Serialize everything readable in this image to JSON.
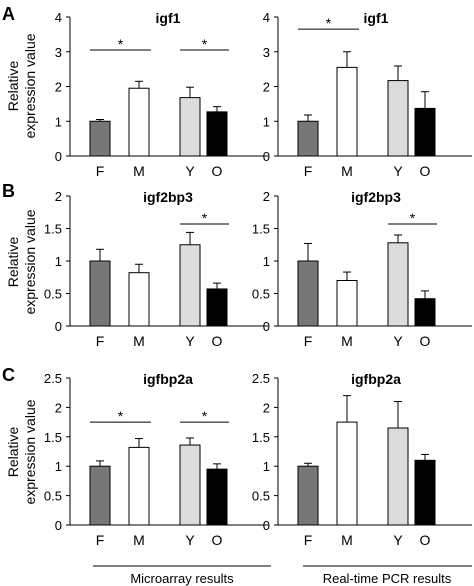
{
  "panel_letters": [
    "A",
    "B",
    "C"
  ],
  "ylabel_lines": [
    "Relative",
    "expression value"
  ],
  "footer": {
    "left": "Microarray results",
    "right": "Real-time PCR results"
  },
  "colors": {
    "F": "#777777",
    "M": "#ffffff",
    "Y": "#dcdcdc",
    "O": "#000000"
  },
  "chart_data": [
    {
      "type": "bar",
      "title": "igf1",
      "method": "Microarray",
      "categories": [
        "F",
        "M",
        "Y",
        "O"
      ],
      "values": [
        1.0,
        1.95,
        1.68,
        1.27
      ],
      "errors": [
        0.05,
        0.2,
        0.3,
        0.15
      ],
      "ylim": [
        0,
        4
      ],
      "yticks": [
        0,
        1,
        2,
        3,
        4
      ],
      "ytick_labels": [
        "0",
        "1",
        "2",
        "3",
        "4"
      ],
      "significance": [
        {
          "from": 0,
          "to": 1,
          "y": 3.05,
          "label": "*"
        },
        {
          "from": 2,
          "to": 3,
          "y": 3.05,
          "label": "*"
        }
      ]
    },
    {
      "type": "bar",
      "title": "igf1",
      "method": "Real-time PCR",
      "categories": [
        "F",
        "M",
        "Y",
        "O"
      ],
      "values": [
        1.0,
        2.55,
        2.17,
        1.37
      ],
      "errors": [
        0.18,
        0.45,
        0.42,
        0.48
      ],
      "ylim": [
        0,
        4
      ],
      "yticks": [
        0,
        1,
        2,
        3,
        4
      ],
      "ytick_labels": [
        "0",
        "1",
        "2",
        "3",
        "4"
      ],
      "significance": [
        {
          "from": 0,
          "to": 1,
          "y": 3.65,
          "label": "*"
        }
      ]
    },
    {
      "type": "bar",
      "title": "igf2bp3",
      "method": "Microarray",
      "categories": [
        "F",
        "M",
        "Y",
        "O"
      ],
      "values": [
        1.0,
        0.82,
        1.25,
        0.57
      ],
      "errors": [
        0.18,
        0.13,
        0.19,
        0.09
      ],
      "ylim": [
        0,
        2
      ],
      "yticks": [
        0,
        0.5,
        1,
        1.5,
        2
      ],
      "ytick_labels": [
        "0",
        "0.5",
        "1",
        "1.5",
        "2"
      ],
      "significance": [
        {
          "from": 2,
          "to": 3,
          "y": 1.57,
          "label": "*"
        }
      ]
    },
    {
      "type": "bar",
      "title": "igf2bp3",
      "method": "Real-time PCR",
      "categories": [
        "F",
        "M",
        "Y",
        "O"
      ],
      "values": [
        1.0,
        0.7,
        1.28,
        0.42
      ],
      "errors": [
        0.27,
        0.13,
        0.12,
        0.12
      ],
      "ylim": [
        0,
        2
      ],
      "yticks": [
        0,
        0.5,
        1,
        1.5,
        2
      ],
      "ytick_labels": [
        "0",
        "0.5",
        "1",
        "1.5",
        "2"
      ],
      "significance": [
        {
          "from": 2,
          "to": 3,
          "y": 1.57,
          "label": "*"
        }
      ]
    },
    {
      "type": "bar",
      "title": "igfbp2a",
      "method": "Microarray",
      "categories": [
        "F",
        "M",
        "Y",
        "O"
      ],
      "values": [
        1.0,
        1.32,
        1.36,
        0.95
      ],
      "errors": [
        0.09,
        0.15,
        0.12,
        0.09
      ],
      "ylim": [
        0,
        2.5
      ],
      "yticks": [
        0,
        0.5,
        1,
        1.5,
        2,
        2.5
      ],
      "ytick_labels": [
        "0",
        "0.5",
        "1",
        "1.5",
        "2",
        "2.5"
      ],
      "significance": [
        {
          "from": 0,
          "to": 1,
          "y": 1.75,
          "label": "*"
        },
        {
          "from": 2,
          "to": 3,
          "y": 1.75,
          "label": "*"
        }
      ]
    },
    {
      "type": "bar",
      "title": "igfbp2a",
      "method": "Real-time PCR",
      "categories": [
        "F",
        "M",
        "Y",
        "O"
      ],
      "values": [
        1.0,
        1.75,
        1.65,
        1.1
      ],
      "errors": [
        0.05,
        0.45,
        0.45,
        0.1
      ],
      "ylim": [
        0,
        2.5
      ],
      "yticks": [
        0,
        0.5,
        1,
        1.5,
        2,
        2.5
      ],
      "ytick_labels": [
        "0",
        "0.5",
        "1",
        "1.5",
        "2",
        "2.5"
      ],
      "significance": []
    }
  ]
}
